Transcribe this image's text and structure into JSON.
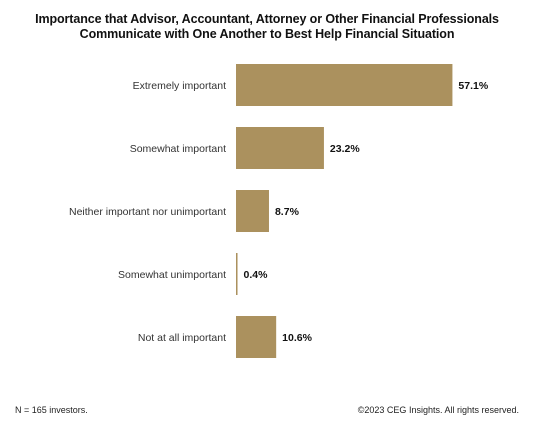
{
  "title_line1": "Importance that Advisor, Accountant, Attorney or Other Financial Professionals",
  "title_line2": "Communicate with One Another to Best Help Financial Situation",
  "footnote": "N = 165 investors.",
  "copyright": "©2023 CEG Insights. All rights reserved.",
  "colors": {
    "bar": "#AB915E",
    "axis": "#999999",
    "text": "#111111"
  },
  "chart_data": {
    "type": "bar",
    "orientation": "horizontal",
    "title": "Importance that Advisor, Accountant, Attorney or Other Financial Professionals Communicate with One Another to Best Help Financial Situation",
    "categories": [
      "Extremely important",
      "Somewhat important",
      "Neither important nor unimportant",
      "Somewhat unimportant",
      "Not at all important"
    ],
    "values": [
      57.1,
      23.2,
      8.7,
      0.4,
      10.6
    ],
    "value_labels": [
      "57.1%",
      "23.2%",
      "8.7%",
      "0.4%",
      "10.6%"
    ],
    "unit": "%",
    "xlim": [
      0,
      62
    ],
    "grid": false,
    "legend": "none"
  }
}
